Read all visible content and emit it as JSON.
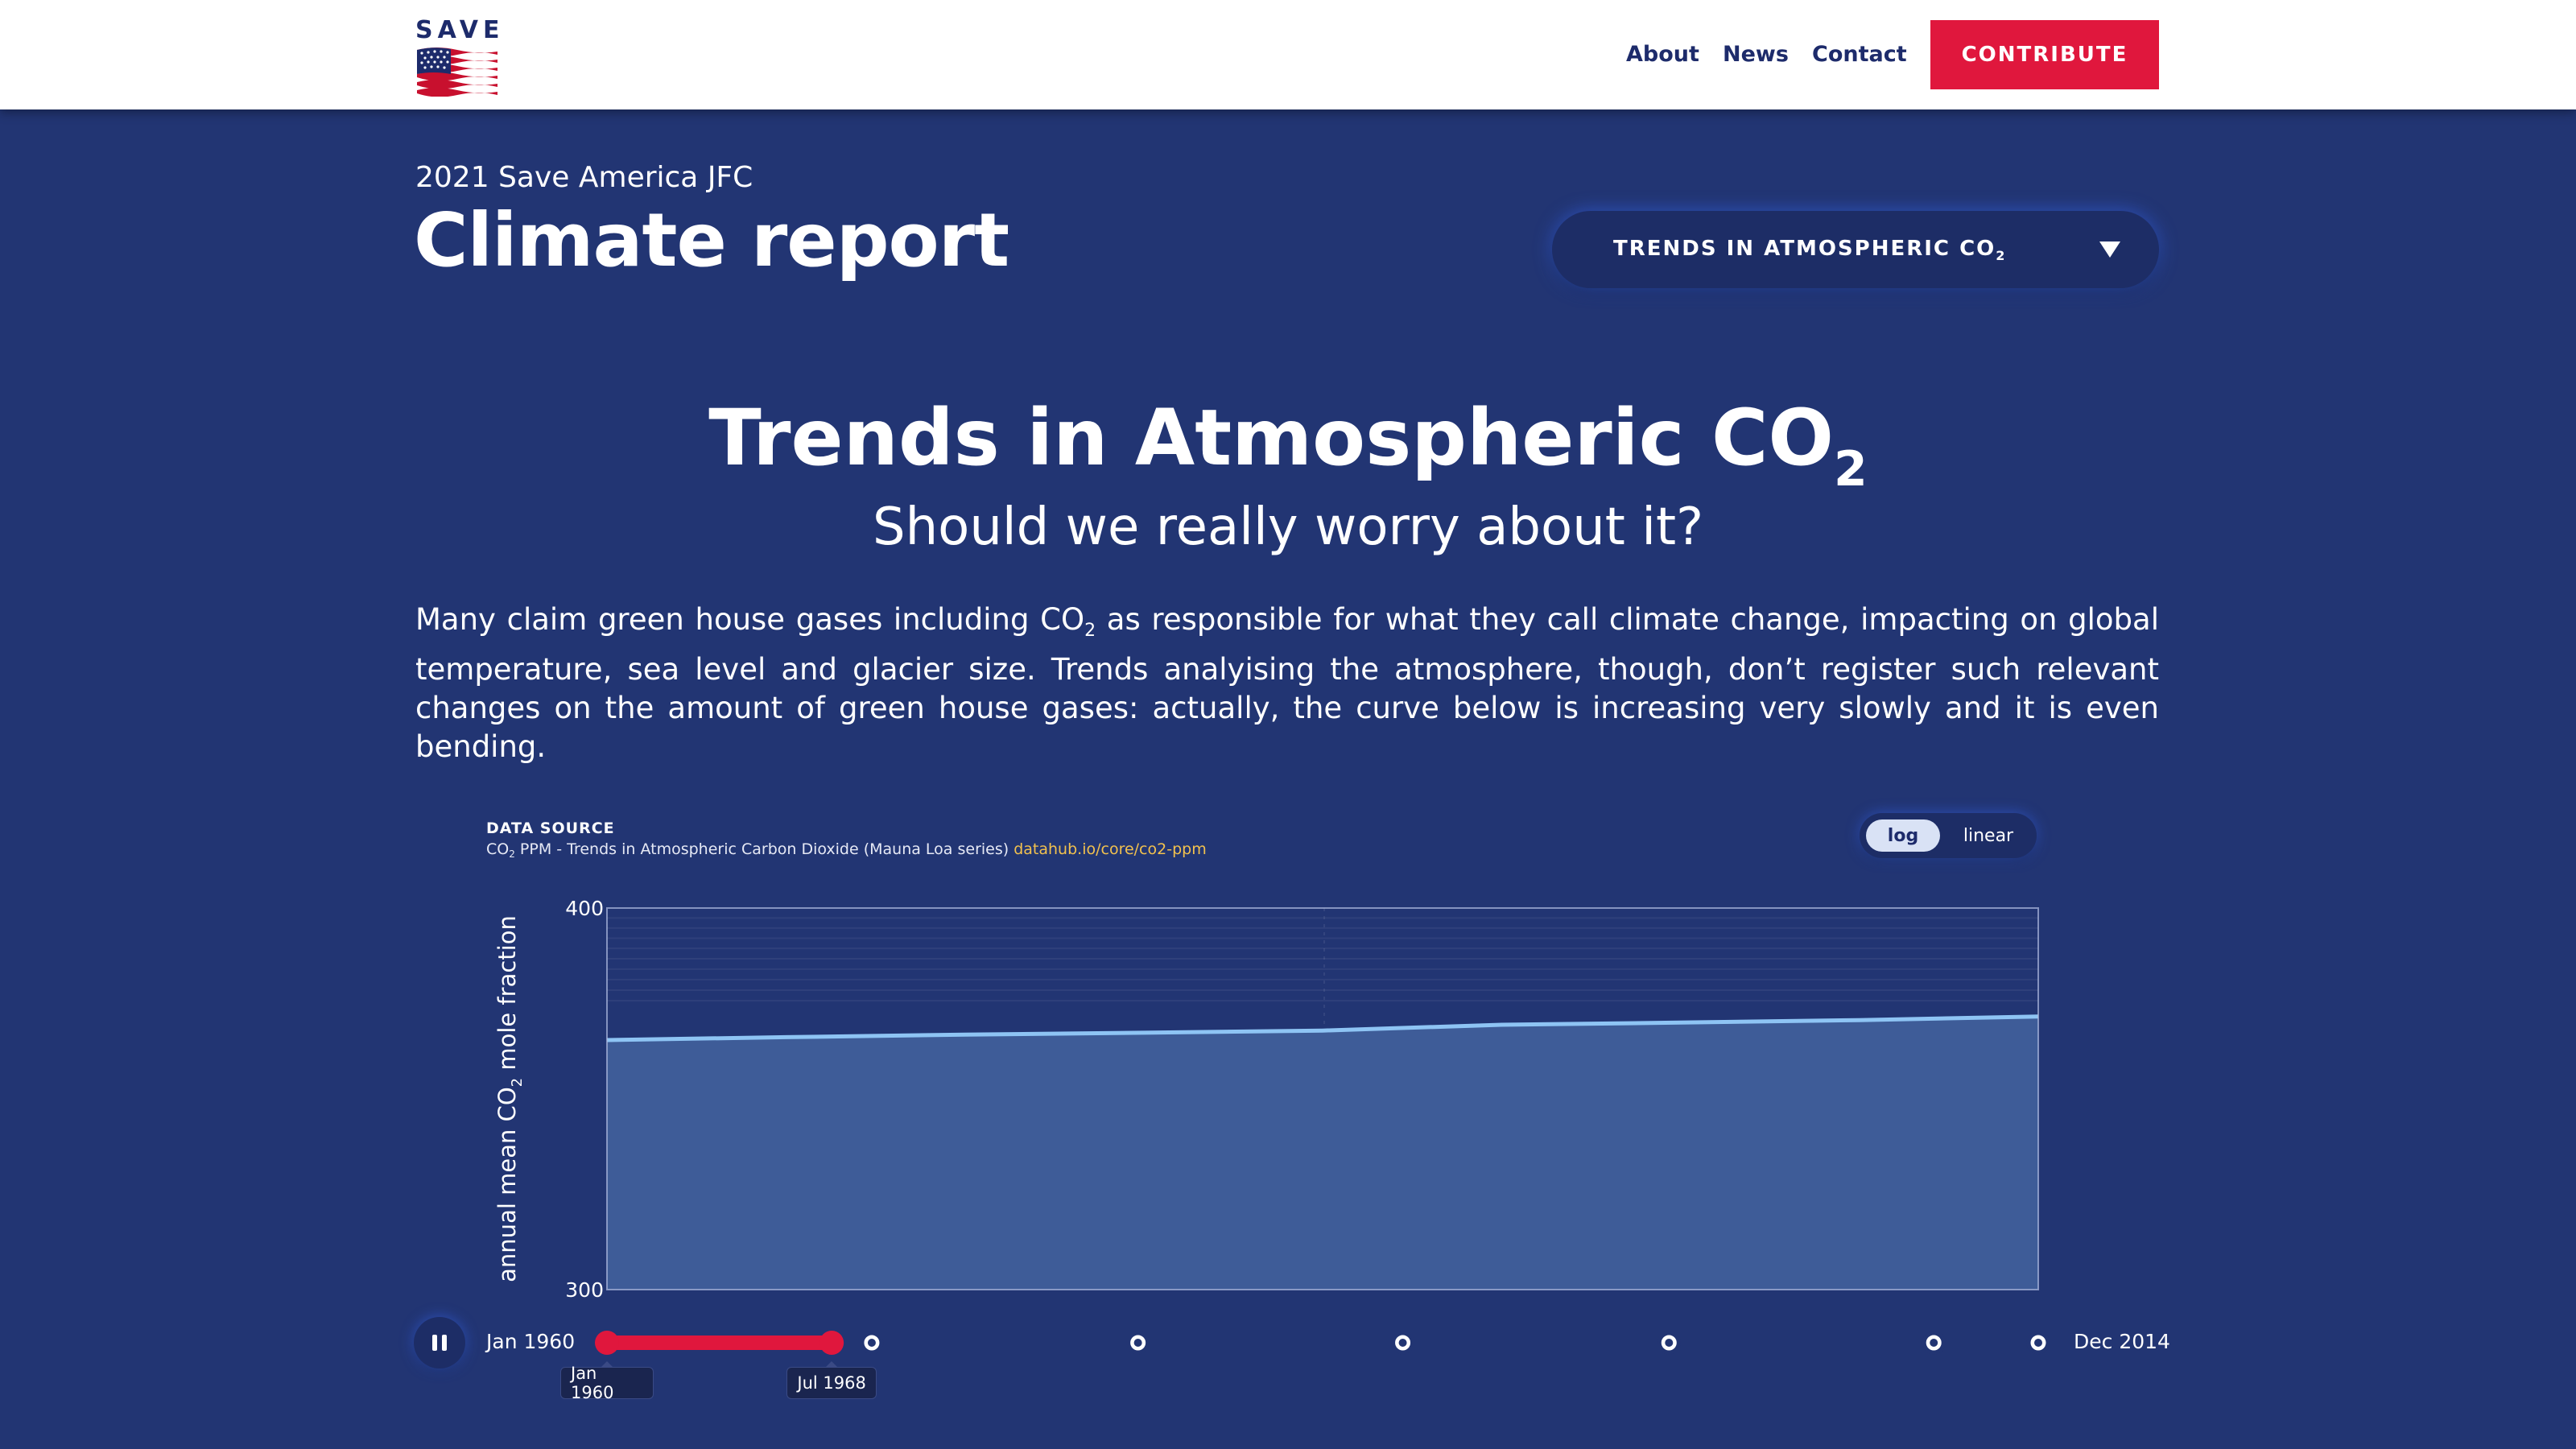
{
  "header": {
    "logo_text": "SAVE",
    "nav": [
      "About",
      "News",
      "Contact"
    ],
    "cta_label": "CONTRIBUTE"
  },
  "intro": {
    "kicker": "2021 Save America JFC",
    "title": "Climate report",
    "selector_label": "TRENDS IN ATMOSPHERIC CO",
    "selector_sub": "2"
  },
  "section": {
    "title": "Trends in Atmospheric CO",
    "title_sub": "2",
    "subtitle": "Should we really worry about it?",
    "para_part1": "Many claim green house gases including CO",
    "para_sub": "2",
    "para_part2": " as responsible for what they call climate change, impacting on global temperature, sea level and glacier size. Trends analyising the atmosphere, though, don’t register such relevant changes on the amount of green house gases: actually, the curve below is increasing very slowly and it is even bending."
  },
  "source": {
    "label": "DATA SOURCE",
    "text_pre": "CO",
    "text_sub": "2",
    "text_post": " PPM - Trends in Atmospheric Carbon Dioxide (Mauna Loa series) ",
    "link": "datahub.io/core/co2-ppm"
  },
  "scale_toggle": {
    "options": [
      "log",
      "linear"
    ],
    "selected": "log"
  },
  "timeline": {
    "start_label": "Jan 1960",
    "end_label": "Dec 2014",
    "handle_start": "Jan 1960",
    "handle_end": "Jul 1968",
    "selected_fraction": [
      0.0,
      0.157
    ],
    "marker_fractions": [
      0.185,
      0.371,
      0.556,
      0.742,
      0.927,
      1.0
    ]
  },
  "colors": {
    "background": "#223573",
    "accent": "#e0173d",
    "line": "#8ec4f4",
    "area": "#3e5c98",
    "link": "#f2c14e"
  },
  "chart_data": {
    "type": "area",
    "ylabel_pre": "annual mean CO",
    "ylabel_sub": "2",
    "ylabel_post": " mole fraction",
    "ylim": [
      300,
      400
    ],
    "yscale": "log",
    "ytick_labels": [
      "400",
      "300"
    ],
    "x": [
      1960,
      1961,
      1962,
      1963,
      1964,
      1965,
      1966,
      1967,
      1968
    ],
    "values": [
      362.1,
      362.9,
      363.6,
      364.1,
      364.7,
      366.3,
      366.9,
      367.6,
      368.6
    ]
  }
}
